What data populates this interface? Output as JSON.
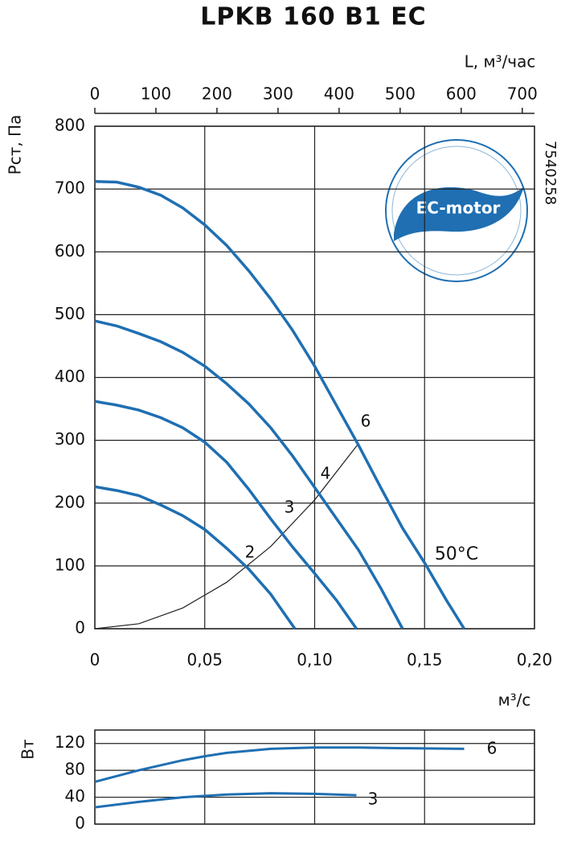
{
  "chart_data": [
    {
      "type": "line",
      "title": "LPKB 160 B1 EC",
      "ylabel": "Рст, Па",
      "xlabel": "м³/с",
      "x2label": "L, м³/час",
      "side_label": "7540258",
      "badge": "EC-motor",
      "annotation": "50°C",
      "xlim": [
        0,
        0.2
      ],
      "xticks": [
        0,
        {
          "value": 0.05,
          "label": "0,05"
        },
        {
          "value": 0.1,
          "label": "0,10"
        },
        {
          "value": 0.15,
          "label": "0,15"
        },
        {
          "value": 0.2,
          "label": "0,20"
        }
      ],
      "x2lim": [
        0,
        720
      ],
      "x2ticks": [
        0,
        100,
        200,
        300,
        400,
        500,
        600,
        700
      ],
      "ylim": [
        0,
        800
      ],
      "yticks": [
        0,
        100,
        200,
        300,
        400,
        500,
        600,
        700,
        800
      ],
      "grid": true,
      "series": [
        {
          "name": "6",
          "color": "#1f6fb2",
          "x": [
            0,
            0.01,
            0.02,
            0.03,
            0.04,
            0.05,
            0.06,
            0.07,
            0.08,
            0.09,
            0.1,
            0.11,
            0.12,
            0.13,
            0.14,
            0.15,
            0.16,
            0.168
          ],
          "values": [
            712,
            711,
            703,
            690,
            670,
            643,
            610,
            570,
            525,
            475,
            418,
            355,
            292,
            225,
            160,
            105,
            45,
            0
          ]
        },
        {
          "name": "4",
          "color": "#1f6fb2",
          "x": [
            0,
            0.01,
            0.02,
            0.03,
            0.04,
            0.05,
            0.06,
            0.07,
            0.08,
            0.09,
            0.1,
            0.11,
            0.12,
            0.13,
            0.14
          ],
          "values": [
            490,
            482,
            470,
            457,
            440,
            418,
            390,
            358,
            320,
            275,
            225,
            175,
            125,
            65,
            0
          ]
        },
        {
          "name": "3",
          "color": "#1f6fb2",
          "x": [
            0,
            0.01,
            0.02,
            0.03,
            0.04,
            0.05,
            0.06,
            0.07,
            0.08,
            0.09,
            0.1,
            0.11,
            0.119
          ],
          "values": [
            362,
            356,
            348,
            336,
            320,
            297,
            265,
            222,
            175,
            130,
            88,
            45,
            0
          ]
        },
        {
          "name": "2",
          "color": "#1f6fb2",
          "x": [
            0,
            0.01,
            0.02,
            0.03,
            0.04,
            0.05,
            0.06,
            0.07,
            0.08,
            0.091
          ],
          "values": [
            226,
            220,
            212,
            197,
            180,
            158,
            128,
            95,
            55,
            0
          ]
        }
      ],
      "system_curve": {
        "color": "#222222",
        "x": [
          0,
          0.02,
          0.04,
          0.06,
          0.08,
          0.1,
          0.12
        ],
        "values": [
          0,
          8,
          33,
          74,
          131,
          205,
          295
        ]
      }
    },
    {
      "type": "line",
      "ylabel": "Вт",
      "xlim": [
        0,
        0.2
      ],
      "xticks": [
        0,
        0.05,
        0.1,
        0.15,
        0.2
      ],
      "ylim": [
        0,
        140
      ],
      "yticks": [
        0,
        40,
        80,
        120
      ],
      "grid": true,
      "series": [
        {
          "name": "6",
          "color": "#1f6fb2",
          "x": [
            0,
            0.02,
            0.04,
            0.05,
            0.06,
            0.08,
            0.1,
            0.12,
            0.14,
            0.168
          ],
          "values": [
            63,
            80,
            95,
            101,
            106,
            112,
            114,
            114,
            113,
            112
          ]
        },
        {
          "name": "3",
          "color": "#1f6fb2",
          "x": [
            0,
            0.02,
            0.04,
            0.06,
            0.08,
            0.1,
            0.119
          ],
          "values": [
            25,
            33,
            40,
            44,
            46,
            45,
            43
          ]
        }
      ]
    }
  ]
}
